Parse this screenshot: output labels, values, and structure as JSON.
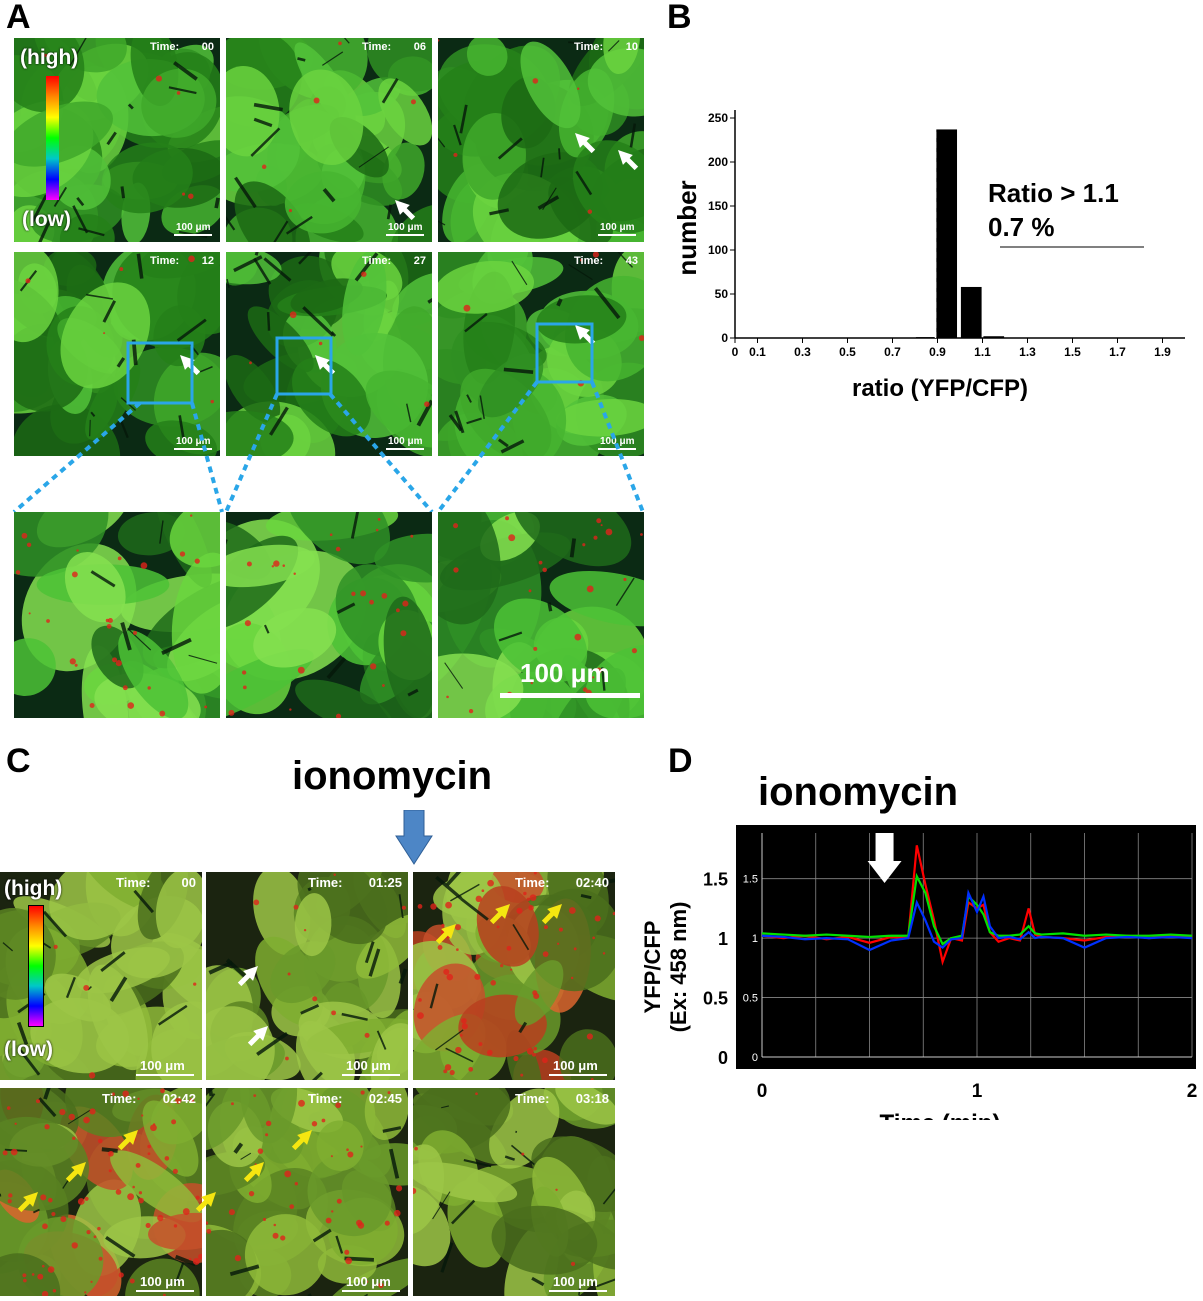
{
  "panels": {
    "A": {
      "letter": "A",
      "colorbar": {
        "high": "(high)",
        "low": "(low)"
      },
      "times_row1": [
        "Time:",
        "00",
        "06",
        "10"
      ],
      "times_row2": [
        "12",
        "27",
        "43"
      ],
      "scale_small": "100 μm",
      "scale_zoom": "100 μm"
    },
    "B": {
      "letter": "B"
    },
    "C": {
      "letter": "C",
      "drug": "ionomycin",
      "colorbar": {
        "high": "(high)",
        "low": "(low)"
      },
      "times": [
        "00",
        "01:25",
        "02:40",
        "02:42",
        "02:45",
        "03:18"
      ],
      "time_label": "Time:",
      "scale": "100 μm"
    },
    "D": {
      "letter": "D",
      "drug": "ionomycin"
    }
  },
  "chart_data": [
    {
      "type": "bar",
      "panel": "B",
      "xlabel": "ratio (YFP/CFP)",
      "ylabel": "number",
      "x_ticks": [
        "0",
        "0.1",
        "0.3",
        "0.5",
        "0.7",
        "0.9",
        "1.1",
        "1.3",
        "1.5",
        "1.7",
        "1.9"
      ],
      "y_ticks": [
        "0",
        "50",
        "100",
        "150",
        "200",
        "250"
      ],
      "ylim": [
        0,
        250
      ],
      "bins": [
        0.85,
        0.95,
        1.05,
        1.15
      ],
      "values": [
        1,
        237,
        58,
        2
      ],
      "annotation_line1": "Ratio > 1.1",
      "annotation_line2": "0.7  %"
    },
    {
      "type": "line",
      "panel": "D",
      "xlabel": "Time (min)",
      "ylabel": "YFP/CFP\n(Ex: 458 nm)",
      "ylabel_line1": "YFP/CFP",
      "ylabel_line2": "(Ex: 458 nm)",
      "x_ticks": [
        "0",
        "1",
        "2"
      ],
      "y_ticks": [
        "0",
        "0.5",
        "1",
        "1.5"
      ],
      "xlim": [
        0,
        2
      ],
      "ylim": [
        0,
        1.8
      ],
      "grid": true,
      "background": "#000000",
      "series": [
        {
          "color": "#ff0000",
          "x": [
            0,
            0.1,
            0.2,
            0.3,
            0.4,
            0.5,
            0.6,
            0.68,
            0.72,
            0.76,
            0.8,
            0.84,
            0.88,
            0.93,
            0.96,
            1.0,
            1.03,
            1.06,
            1.1,
            1.15,
            1.2,
            1.24,
            1.27,
            1.3,
            1.4,
            1.5,
            1.6,
            1.7,
            1.8,
            1.9,
            2.0
          ],
          "y": [
            1.02,
            1.0,
            1.02,
            0.99,
            1.01,
            0.96,
            1.01,
            1.0,
            1.78,
            1.45,
            1.15,
            0.8,
            1.0,
            0.98,
            1.3,
            1.25,
            1.28,
            1.05,
            0.97,
            1.0,
            0.98,
            1.25,
            1.03,
            1.01,
            1.0,
            0.98,
            1.01,
            1.02,
            1.0,
            1.02,
            1.01
          ]
        },
        {
          "color": "#00e000",
          "x": [
            0,
            0.1,
            0.2,
            0.3,
            0.4,
            0.5,
            0.6,
            0.68,
            0.72,
            0.76,
            0.8,
            0.84,
            0.88,
            0.93,
            0.96,
            1.0,
            1.03,
            1.06,
            1.1,
            1.15,
            1.2,
            1.24,
            1.27,
            1.3,
            1.4,
            1.5,
            1.6,
            1.7,
            1.8,
            1.9,
            2.0
          ],
          "y": [
            1.04,
            1.03,
            1.02,
            1.03,
            1.02,
            1.01,
            1.02,
            1.02,
            1.52,
            1.38,
            1.1,
            0.95,
            1.0,
            1.02,
            1.35,
            1.28,
            1.2,
            1.05,
            1.02,
            1.02,
            1.03,
            1.1,
            1.04,
            1.03,
            1.04,
            1.02,
            1.03,
            1.02,
            1.02,
            1.03,
            1.02
          ]
        },
        {
          "color": "#0030ff",
          "x": [
            0,
            0.1,
            0.2,
            0.3,
            0.4,
            0.5,
            0.6,
            0.68,
            0.72,
            0.76,
            0.8,
            0.84,
            0.88,
            0.93,
            0.96,
            1.0,
            1.03,
            1.06,
            1.1,
            1.15,
            1.2,
            1.24,
            1.27,
            1.3,
            1.4,
            1.5,
            1.6,
            1.7,
            1.8,
            1.9,
            2.0
          ],
          "y": [
            1.02,
            1.01,
            0.99,
            1.0,
            0.99,
            0.9,
            0.98,
            1.0,
            1.3,
            1.15,
            0.97,
            0.92,
            0.99,
            1.0,
            1.38,
            1.22,
            1.35,
            1.1,
            1.0,
            1.01,
            0.99,
            1.05,
            1.0,
            1.01,
            1.0,
            0.92,
            1.0,
            1.01,
            1.0,
            1.01,
            1.0
          ]
        }
      ]
    }
  ]
}
